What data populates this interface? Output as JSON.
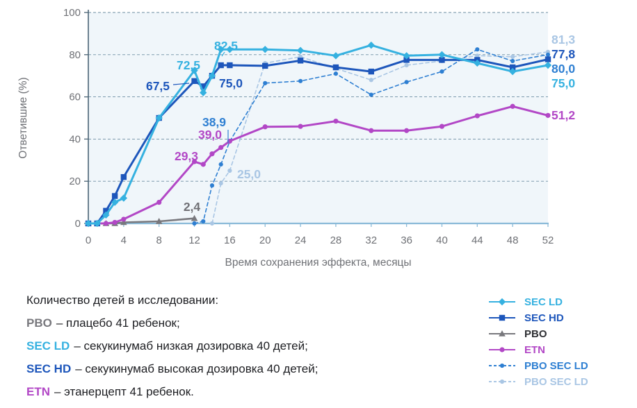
{
  "chart_data": {
    "type": "line",
    "title": "",
    "xlabel": "Время сохранения эффекта, месяцы",
    "ylabel": "Ответившие (%)",
    "xlim": [
      0,
      52
    ],
    "ylim": [
      0,
      100
    ],
    "xticks": [
      0,
      4,
      8,
      12,
      16,
      20,
      24,
      28,
      32,
      36,
      40,
      44,
      48,
      52
    ],
    "yticks": [
      0,
      20,
      40,
      60,
      80,
      100
    ],
    "grid": "horizontal-dashed",
    "legend_position": "bottom-right",
    "colors": {
      "plot_bg": "#F0F6FA",
      "grid": "#5E8299",
      "y_axis": "#4A6374",
      "x_axis": "#8ABAD8",
      "tick_text": "#6E7075",
      "axis_title_text": "#6E7075"
    },
    "x_months": [
      0,
      1,
      2,
      3,
      4,
      8,
      12,
      13,
      14,
      15,
      16,
      20,
      24,
      28,
      32,
      36,
      40,
      44,
      48,
      52
    ],
    "series": [
      {
        "name": "PBO SEC LD",
        "color": "#A9C6E4",
        "marker": "circle",
        "dash": true,
        "width": 1.6,
        "values": [
          null,
          null,
          null,
          null,
          null,
          null,
          null,
          null,
          0,
          19,
          25.0,
          76,
          79,
          73.5,
          68,
          75,
          77,
          79.5,
          79,
          81.3
        ]
      },
      {
        "name": "PBO SEC LD",
        "color": "#2E7FD2",
        "marker": "circle",
        "dash": true,
        "width": 1.6,
        "values": [
          null,
          null,
          null,
          null,
          null,
          null,
          0,
          1,
          18,
          28,
          38.9,
          66.5,
          67.5,
          71,
          61,
          67,
          72,
          82.5,
          77,
          80.0
        ]
      },
      {
        "name": "PBO",
        "color": "#78787D",
        "marker": "triangle",
        "dash": false,
        "width": 2.6,
        "values": [
          0,
          0,
          0,
          0,
          0.5,
          1,
          2.4,
          null,
          null,
          null,
          null,
          null,
          null,
          null,
          null,
          null,
          null,
          null,
          null,
          null
        ]
      },
      {
        "name": "ETN",
        "color": "#B247C6",
        "marker": "circle",
        "dash": false,
        "width": 3,
        "values": [
          0,
          0,
          0,
          0.5,
          2,
          10,
          29.3,
          28,
          33,
          36,
          39.0,
          45.8,
          46,
          48.5,
          44,
          44,
          46,
          51,
          55.5,
          51.2
        ]
      },
      {
        "name": "SEC HD",
        "color": "#1D56BB",
        "marker": "square",
        "dash": false,
        "width": 3,
        "values": [
          0,
          0,
          6,
          13,
          22,
          50,
          67.5,
          65,
          70,
          75.0,
          75,
          74.7,
          77.2,
          74,
          72,
          77.5,
          77.5,
          77.5,
          74,
          77.8
        ]
      },
      {
        "name": "SEC LD",
        "color": "#35B1E0",
        "marker": "diamond",
        "dash": false,
        "width": 3,
        "values": [
          0,
          0,
          4,
          10,
          12,
          50,
          72.5,
          62,
          70,
          82.5,
          82.5,
          82.5,
          82,
          79.5,
          84.5,
          79.5,
          80,
          76,
          72,
          75.0
        ]
      }
    ],
    "annotations": [
      {
        "text": "82,5",
        "px": [
          325,
          72
        ],
        "color": "#35B1E0",
        "anchor": "middle"
      },
      {
        "text": "72,5",
        "px": [
          271,
          100
        ],
        "color": "#35B1E0",
        "anchor": "middle"
      },
      {
        "text": "67,5",
        "px": [
          227,
          130
        ],
        "color": "#1D56BB",
        "anchor": "middle"
      },
      {
        "text": "75,0",
        "px": [
          332,
          126
        ],
        "color": "#1D56BB",
        "anchor": "middle"
      },
      {
        "text": "38,9",
        "px": [
          308,
          182
        ],
        "color": "#2E7FD2",
        "anchor": "middle"
      },
      {
        "text": "39,0",
        "px": [
          302,
          200
        ],
        "color": "#B247C6",
        "anchor": "middle"
      },
      {
        "text": "29,3",
        "px": [
          268,
          231
        ],
        "color": "#B247C6",
        "anchor": "middle"
      },
      {
        "text": "25,0",
        "px": [
          358,
          257
        ],
        "color": "#A9C6E4",
        "anchor": "middle"
      },
      {
        "text": "2,4",
        "px": [
          276,
          304
        ],
        "color": "#6F6F74",
        "anchor": "middle"
      },
      {
        "text": "81,3",
        "px": [
          793,
          63
        ],
        "color": "#A9C6E4",
        "anchor": "start"
      },
      {
        "text": "77,8",
        "px": [
          793,
          84
        ],
        "color": "#1D56BB",
        "anchor": "start"
      },
      {
        "text": "80,0",
        "px": [
          793,
          105
        ],
        "color": "#2E7FD2",
        "anchor": "start"
      },
      {
        "text": "75,0",
        "px": [
          793,
          126
        ],
        "color": "#35B1E0",
        "anchor": "start"
      },
      {
        "text": "51,2",
        "px": [
          793,
          172
        ],
        "color": "#B247C6",
        "anchor": "start"
      }
    ],
    "leader_lines": [
      {
        "from": [
          249,
          122
        ],
        "to": [
          272,
          120
        ],
        "color": "#1D56BB"
      },
      {
        "from": [
          323,
          75
        ],
        "to": [
          319,
          81
        ],
        "color": "#35B1E0"
      },
      {
        "from": [
          328,
          187
        ],
        "to": [
          328,
          206
        ],
        "color": "#2E7FD2"
      }
    ]
  },
  "legend": {
    "items": [
      {
        "label": "SEC LD",
        "color": "#35B1E0",
        "label_color": "#35B1E0",
        "marker": "diamond",
        "dash": false
      },
      {
        "label": "SEC HD",
        "color": "#1D56BB",
        "label_color": "#1D56BB",
        "marker": "square",
        "dash": false
      },
      {
        "label": "PBO",
        "color": "#78787D",
        "label_color": "#2E2F33",
        "marker": "triangle",
        "dash": false
      },
      {
        "label": "ETN",
        "color": "#B247C6",
        "label_color": "#B247C6",
        "marker": "circle",
        "dash": false
      },
      {
        "label": "PBO SEC LD",
        "color": "#2E7FD2",
        "label_color": "#2E7FD2",
        "marker": "circle",
        "dash": true
      },
      {
        "label": "PBO SEC LD",
        "color": "#A9C6E4",
        "label_color": "#A9C6E4",
        "marker": "circle",
        "dash": true
      }
    ]
  },
  "footnote": {
    "title": "Количество детей в исследовании:",
    "items": [
      {
        "code": "PBO",
        "color": "#78787D",
        "text": "– плацебо 41 ребенок;"
      },
      {
        "code": "SEC LD",
        "color": "#35B1E0",
        "text": "– секукинумаб низкая дозировка 40 детей;"
      },
      {
        "code": "SEC HD",
        "color": "#1D56BB",
        "text": "– секукинумаб высокая дозировка 40 детей;"
      },
      {
        "code": "ETN",
        "color": "#B247C6",
        "text": "– этанерцепт 41 ребенок."
      }
    ]
  }
}
